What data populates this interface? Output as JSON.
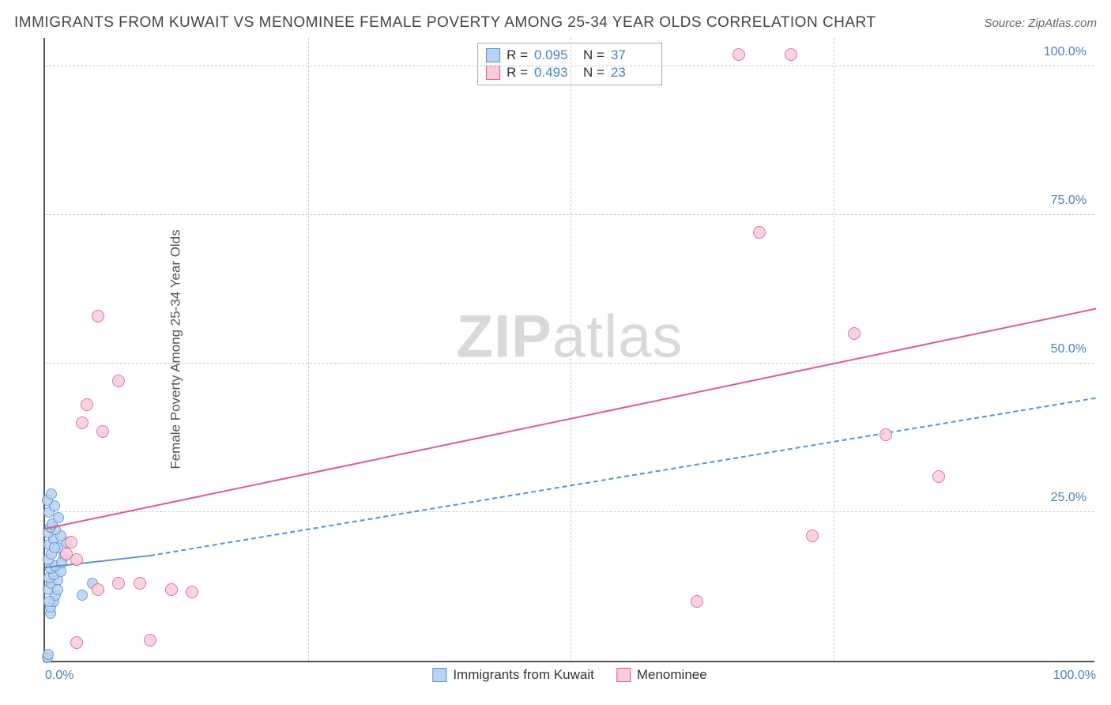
{
  "title": "IMMIGRANTS FROM KUWAIT VS MENOMINEE FEMALE POVERTY AMONG 25-34 YEAR OLDS CORRELATION CHART",
  "source": "Source: ZipAtlas.com",
  "y_axis_label": "Female Poverty Among 25-34 Year Olds",
  "watermark_bold": "ZIP",
  "watermark_light": "atlas",
  "chart": {
    "type": "scatter",
    "xlim": [
      0,
      100
    ],
    "ylim": [
      0,
      105
    ],
    "x_ticks": [
      0,
      25,
      50,
      75,
      100
    ],
    "x_tick_labels": [
      "0.0%",
      "",
      "",
      "",
      "100.0%"
    ],
    "y_ticks": [
      25,
      50,
      75,
      100
    ],
    "y_tick_labels": [
      "25.0%",
      "50.0%",
      "75.0%",
      "100.0%"
    ],
    "grid_color": "#cccccc",
    "background_color": "#ffffff",
    "axis_color": "#555555",
    "tick_label_color": "#4a7ec9",
    "series": [
      {
        "name": "Immigrants from Kuwait",
        "color_fill": "#b9d3f0",
        "color_stroke": "#5a8fd6",
        "marker_radius": 7,
        "r_value": "0.095",
        "n_value": "37",
        "trend": {
          "x1": 0,
          "y1": 15.5,
          "x2": 10,
          "y2": 17.5,
          "solid": true
        },
        "trend_ext": {
          "x1": 10,
          "y1": 17.5,
          "x2": 100,
          "y2": 44,
          "solid": false
        },
        "points": [
          [
            0.2,
            0.5
          ],
          [
            0.3,
            1.0
          ],
          [
            0.5,
            8
          ],
          [
            0.5,
            9
          ],
          [
            0.8,
            10
          ],
          [
            1.0,
            11
          ],
          [
            0.3,
            12
          ],
          [
            0.6,
            13
          ],
          [
            1.2,
            13.5
          ],
          [
            0.4,
            14
          ],
          [
            0.8,
            14.5
          ],
          [
            1.5,
            15
          ],
          [
            0.5,
            15.5
          ],
          [
            1.0,
            16
          ],
          [
            0.3,
            17
          ],
          [
            1.8,
            17.5
          ],
          [
            0.6,
            18
          ],
          [
            1.2,
            19
          ],
          [
            0.4,
            19.5
          ],
          [
            2.0,
            20
          ],
          [
            0.8,
            20.5
          ],
          [
            1.5,
            21
          ],
          [
            0.3,
            21.5
          ],
          [
            1.0,
            22
          ],
          [
            0.5,
            22.5
          ],
          [
            0.7,
            23
          ],
          [
            1.3,
            24
          ],
          [
            0.4,
            25
          ],
          [
            0.9,
            26
          ],
          [
            0.2,
            27
          ],
          [
            0.6,
            28
          ],
          [
            3.5,
            11
          ],
          [
            4.5,
            13
          ],
          [
            1.2,
            12
          ],
          [
            0.9,
            19
          ],
          [
            1.6,
            16.5
          ],
          [
            0.4,
            10
          ]
        ]
      },
      {
        "name": "Menominee",
        "color_fill": "#f7cdd9",
        "color_stroke": "#e05a8a",
        "marker_radius": 8,
        "r_value": "0.493",
        "n_value": "23",
        "trend": {
          "x1": 0,
          "y1": 22,
          "x2": 100,
          "y2": 59,
          "solid": true
        },
        "points": [
          [
            3,
            3
          ],
          [
            10,
            3.5
          ],
          [
            5,
            12
          ],
          [
            7,
            13
          ],
          [
            9,
            13
          ],
          [
            12,
            12
          ],
          [
            14,
            11.5
          ],
          [
            3.5,
            40
          ],
          [
            4,
            43
          ],
          [
            5.5,
            38.5
          ],
          [
            7,
            47
          ],
          [
            5,
            58
          ],
          [
            62,
            10
          ],
          [
            73,
            21
          ],
          [
            80,
            38
          ],
          [
            85,
            31
          ],
          [
            77,
            55
          ],
          [
            66,
            102
          ],
          [
            71,
            102
          ],
          [
            2,
            18
          ],
          [
            2.5,
            20
          ],
          [
            3,
            17
          ],
          [
            68,
            72
          ]
        ]
      }
    ],
    "legend_r_label": "R =",
    "legend_n_label": "N ="
  }
}
